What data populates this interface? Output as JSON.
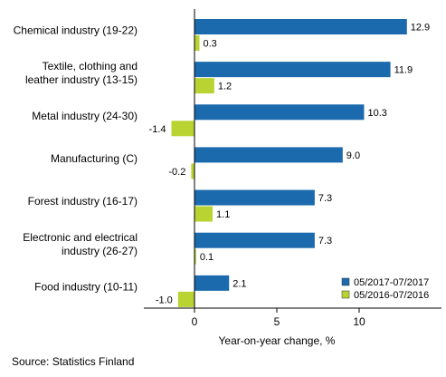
{
  "chart_data": {
    "type": "bar",
    "orientation": "horizontal",
    "categories": [
      [
        "Chemical industry (19-22)"
      ],
      [
        "Textile, clothing and",
        "leather industry (13-15)"
      ],
      [
        "Metal industry (24-30)"
      ],
      [
        "Manufacturing (C)"
      ],
      [
        "Forest industry (16-17)"
      ],
      [
        "Electronic and electrical",
        "industry (26-27)"
      ],
      [
        "Food industry (10-11)"
      ]
    ],
    "series": [
      {
        "name": "05/2017-07/2017",
        "color": "#1a6aad",
        "values": [
          12.9,
          11.9,
          10.3,
          9.0,
          7.3,
          7.3,
          2.1
        ],
        "labels": [
          "12.9",
          "11.9",
          "10.3",
          "9.0",
          "7.3",
          "7.3",
          "2.1"
        ]
      },
      {
        "name": "05/2016-07/2016",
        "color": "#b9d432",
        "values": [
          0.3,
          1.2,
          -1.4,
          -0.2,
          1.1,
          0.1,
          -1.0
        ],
        "labels": [
          "0.3",
          "1.2",
          "-1.4",
          "-0.2",
          "1.1",
          "0.1",
          "-1.0"
        ]
      }
    ],
    "xlabel": "Year-on-year change, %",
    "xlim": [
      -3,
      15
    ],
    "xticks": [
      0,
      5,
      10
    ],
    "grid": false,
    "legend_position": "bottom-right"
  },
  "source": "Source: Statistics Finland"
}
